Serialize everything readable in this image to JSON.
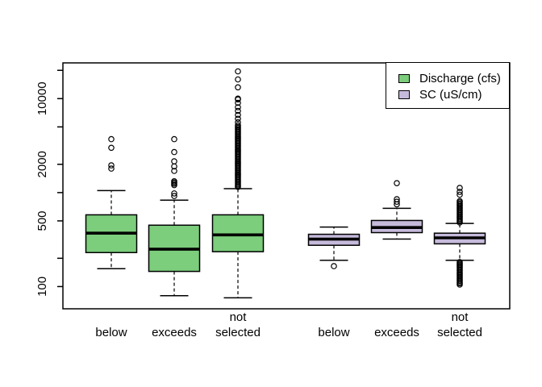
{
  "figure": {
    "background": "#ffffff",
    "foreground": "#000000",
    "title": ""
  },
  "legend": {
    "position": "top-right",
    "items": [
      {
        "label": "Discharge (cfs)",
        "color": "#7ccd7c"
      },
      {
        "label": "SC (uS/cm)",
        "color": "#c6badb"
      }
    ]
  },
  "chart_data": {
    "type": "boxplot",
    "y_scale": "log10",
    "ylabel": "",
    "xlabel": "",
    "y_axis": {
      "range": [
        58,
        24000
      ],
      "ticks": [
        100,
        200,
        500,
        1000,
        2000,
        5000,
        10000,
        20000
      ],
      "labeled_ticks": [
        100,
        500,
        2000,
        10000
      ]
    },
    "x_categories": [
      {
        "label_lines": [
          "below"
        ]
      },
      {
        "label_lines": [
          "exceeds"
        ]
      },
      {
        "label_lines": [
          "not",
          "selected"
        ]
      },
      {
        "label_lines": [
          "below"
        ]
      },
      {
        "label_lines": [
          "exceeds"
        ]
      },
      {
        "label_lines": [
          "not",
          "selected"
        ]
      }
    ],
    "series": [
      {
        "name": "Discharge (cfs)",
        "color": "#7ccd7c"
      },
      {
        "name": "SC (uS/cm)",
        "color": "#c6badb"
      }
    ],
    "boxes": [
      {
        "series": "Discharge (cfs)",
        "category": "below",
        "whisker_low": 155,
        "q1": 230,
        "median": 370,
        "q3": 580,
        "whisker_high": 1050,
        "outliers": [
          1800,
          1950,
          3000,
          3700
        ]
      },
      {
        "series": "Discharge (cfs)",
        "category": "exceeds",
        "whisker_low": 80,
        "q1": 145,
        "median": 250,
        "q3": 450,
        "whisker_high": 830,
        "outliers": [
          920,
          980,
          1200,
          1240,
          1280,
          1320,
          1700,
          1900,
          2150,
          2700,
          3700
        ]
      },
      {
        "series": "Discharge (cfs)",
        "category": "not selected",
        "whisker_low": 76,
        "q1": 235,
        "median": 355,
        "q3": 580,
        "whisker_high": 1100,
        "outliers": [
          1150,
          1186,
          1223,
          1261,
          1300,
          1341,
          1383,
          1426,
          1470,
          1516,
          1563,
          1612,
          1662,
          1714,
          1767,
          1822,
          1879,
          1938,
          1998,
          2060,
          2124,
          2190,
          2259,
          2329,
          2401,
          2476,
          2553,
          2633,
          2715,
          2799,
          2886,
          2976,
          3069,
          3164,
          3263,
          3364,
          3469,
          3577,
          3688,
          3803,
          3921,
          4043,
          4169,
          4299,
          4433,
          4570,
          4712,
          4859,
          5010,
          5200,
          5600,
          6100,
          6700,
          7400,
          8100,
          9000,
          9800,
          10000,
          13200,
          16000,
          19500
        ]
      },
      {
        "series": "SC (uS/cm)",
        "category": "below",
        "whisker_low": 190,
        "q1": 275,
        "median": 320,
        "q3": 360,
        "whisker_high": 430,
        "outliers": [
          165
        ]
      },
      {
        "series": "SC (uS/cm)",
        "category": "exceeds",
        "whisker_low": 320,
        "q1": 375,
        "median": 425,
        "q3": 505,
        "whisker_high": 680,
        "outliers": [
          750,
          800,
          850,
          1260
        ]
      },
      {
        "series": "SC (uS/cm)",
        "category": "not selected",
        "whisker_low": 190,
        "q1": 285,
        "median": 330,
        "q3": 370,
        "whisker_high": 470,
        "outliers": [
          105,
          108,
          111,
          115,
          118,
          122,
          126,
          130,
          134,
          138,
          142,
          147,
          151,
          156,
          161,
          166,
          171,
          176,
          182,
          480,
          495,
          510,
          526,
          543,
          560,
          578,
          596,
          615,
          634,
          654,
          675,
          696,
          718,
          741,
          764,
          788,
          813,
          950,
          1020,
          1120
        ]
      }
    ]
  }
}
